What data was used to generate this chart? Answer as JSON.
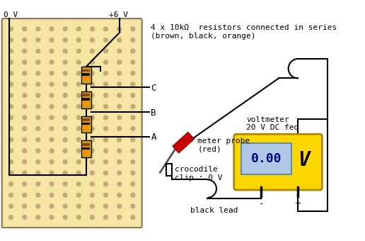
{
  "breadboard_color": "#F5E6A3",
  "breadboard_edge": "#8B7355",
  "dot_color": "#C8A87A",
  "resistor_body": "#D4A017",
  "band_brown": "#8B4513",
  "band_black": "#111111",
  "band_orange": "#FF8C00",
  "voltmeter_fill": "#FFD700",
  "voltmeter_edge": "#AA8800",
  "display_fill": "#B0C8E8",
  "display_text": "0.00",
  "display_text_color": "#000080",
  "probe_red": "#CC0000",
  "probe_gray": "#555555",
  "wire_color": "#000000",
  "label_0V": "0 V",
  "label_6V": "+6 V",
  "label_A": "A",
  "label_B": "B",
  "label_C": "C",
  "annotation": "4 x 10kΩ  resistors connected in series\n(brown, black, orange)",
  "meter_probe_label": "meter probe\n(red)",
  "voltmeter_label": "voltmeter\n20 V DC fed",
  "crocodile_label": "crocodile\nclip : 0 V",
  "black_lead_label": "black lead",
  "V_label": "V"
}
